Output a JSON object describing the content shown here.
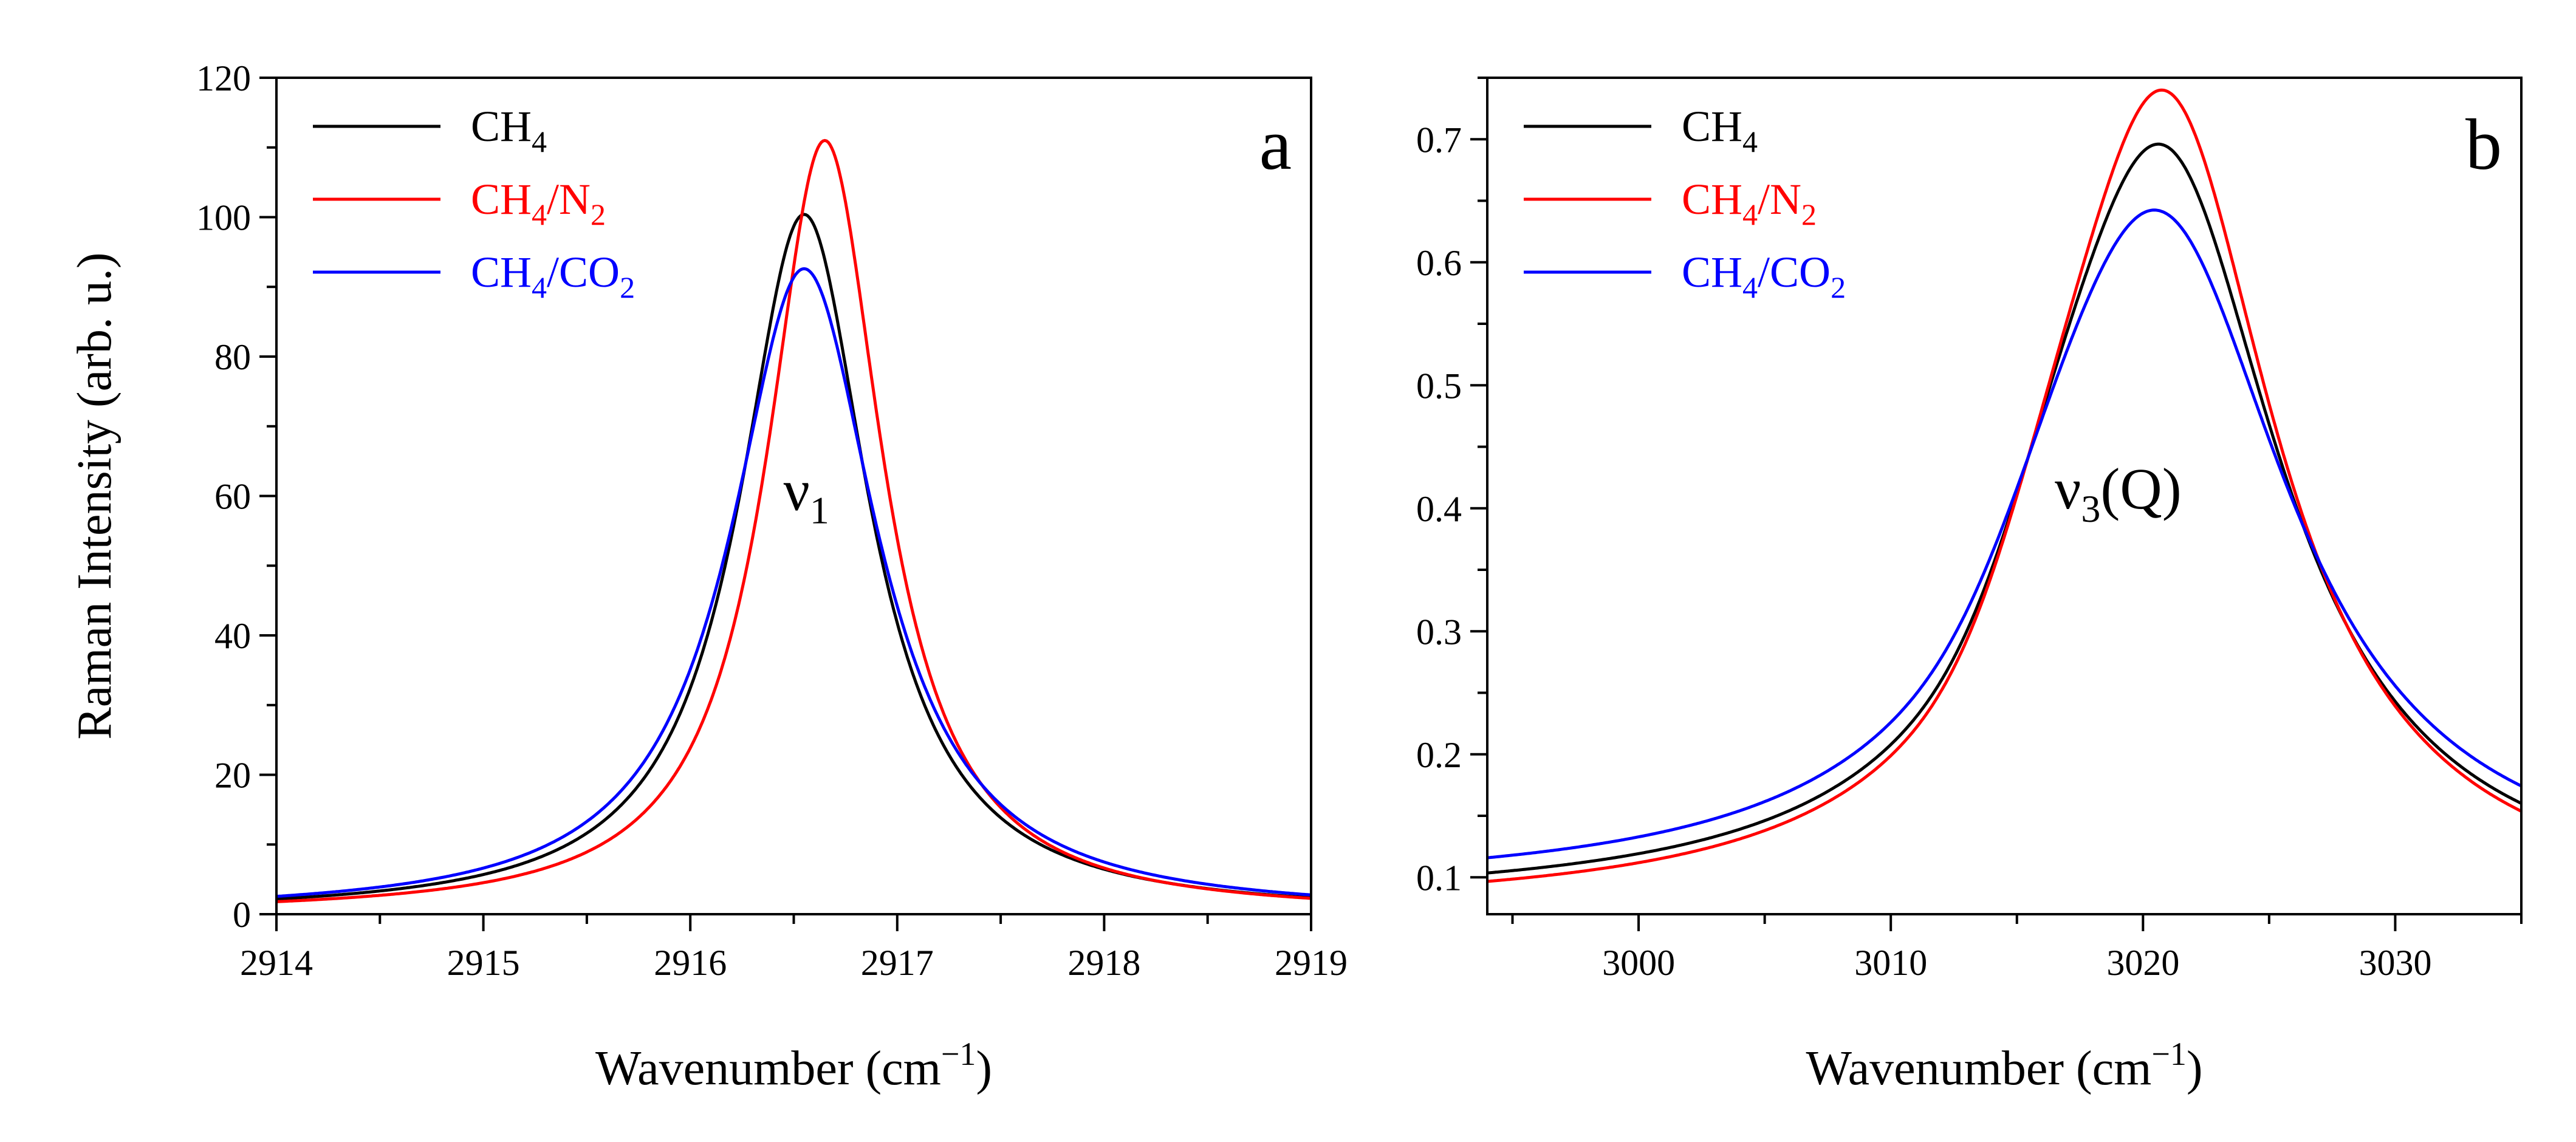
{
  "chart_data": [
    {
      "panel_label": "a",
      "type": "line",
      "xlabel": "Wavenumber (cm⁻¹)",
      "ylabel": "Raman Intensity (arb. u.)",
      "xlim": [
        2914,
        2919
      ],
      "ylim": [
        0,
        120
      ],
      "xticks": [
        2914,
        2915,
        2916,
        2917,
        2918,
        2919
      ],
      "yticks": [
        0,
        20,
        40,
        60,
        80,
        100,
        120
      ],
      "annotation": {
        "base": "ν",
        "sub": "1",
        "x": 2916.45,
        "y": 58
      },
      "legend": "top-left",
      "series": [
        {
          "name": "CH4",
          "label_base": "CH",
          "label_sub": "4",
          "color": "#000000",
          "peak": 2916.55,
          "amp": 100.4,
          "offset": 0,
          "gamma": 0.38,
          "shoulder": null
        },
        {
          "name": "CH4/N2",
          "label_base": "CH",
          "label_sub": "4",
          "label_mid": "/N",
          "label_sub2": "2",
          "color": "#ff0000",
          "peak": 2916.65,
          "amp": 111.0,
          "offset": 0,
          "gamma": 0.34,
          "shoulder": null
        },
        {
          "name": "CH4/CO2",
          "label_base": "CH",
          "label_sub": "4",
          "label_mid": "/CO",
          "label_sub2": "2",
          "color": "#0000ff",
          "peak": 2916.55,
          "amp": 92.6,
          "offset": 0,
          "gamma": 0.43,
          "shoulder": null
        }
      ]
    },
    {
      "panel_label": "b",
      "type": "line",
      "xlabel": "Wavenumber (cm⁻¹)",
      "ylabel": "",
      "xlim": [
        2994,
        3035
      ],
      "ylim": [
        0.07,
        0.75
      ],
      "xticks": [
        3000,
        3010,
        3020,
        3030
      ],
      "yticks": [
        0.1,
        0.2,
        0.3,
        0.4,
        0.5,
        0.6,
        0.7
      ],
      "annotation": {
        "base": "ν",
        "sub": "3",
        "post": "(Q)",
        "x": 3016.5,
        "y": 0.4
      },
      "legend": "top-left",
      "series": [
        {
          "name": "CH4",
          "label_base": "CH",
          "label_sub": "4",
          "color": "#000000",
          "peak": 3020.8,
          "amp": 0.61,
          "offset": 0.078,
          "gamma": 5.6,
          "shoulder": {
            "center": 3016.5,
            "amp": 0.05,
            "width": 2.2
          }
        },
        {
          "name": "CH4/N2",
          "label_base": "CH",
          "label_sub": "4",
          "label_mid": "/N",
          "label_sub2": "2",
          "color": "#ff0000",
          "peak": 3020.9,
          "amp": 0.66,
          "offset": 0.072,
          "gamma": 5.3,
          "shoulder": {
            "center": 3016.5,
            "amp": 0.055,
            "width": 2.2
          }
        },
        {
          "name": "CH4/CO2",
          "label_base": "CH",
          "label_sub": "4",
          "label_mid": "/CO",
          "label_sub2": "2",
          "color": "#0000ff",
          "peak": 3020.7,
          "amp": 0.545,
          "offset": 0.088,
          "gamma": 6.2,
          "shoulder": {
            "center": 3016.5,
            "amp": 0.04,
            "width": 2.4
          }
        }
      ]
    }
  ]
}
